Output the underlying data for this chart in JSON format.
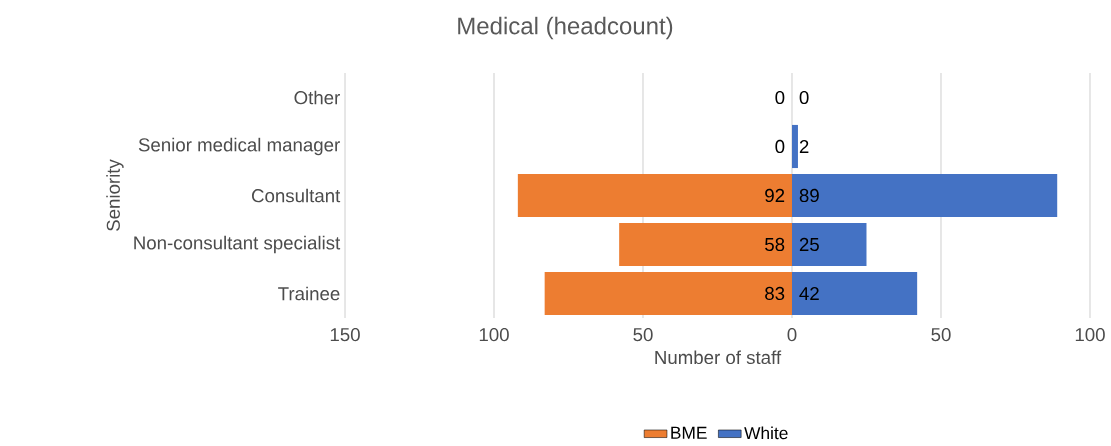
{
  "chart_data": {
    "type": "bar",
    "orientation": "horizontal",
    "title": "Medical (headcount)",
    "xlabel": "Number of staff",
    "ylabel": "Seniority",
    "categories": [
      "Other",
      "Senior medical manager",
      "Consultant",
      "Non-consultant specialist",
      "Trainee"
    ],
    "series": [
      {
        "name": "BME",
        "color": "#ed7d31",
        "values": [
          0,
          0,
          92,
          58,
          83
        ],
        "base": [
          null,
          null,
          -92,
          -58,
          -83
        ],
        "value_labels": [
          "0",
          "0",
          "92",
          "58",
          "83"
        ]
      },
      {
        "name": "White",
        "color": "#4472c4",
        "values": [
          0,
          2,
          89,
          25,
          42
        ],
        "value_labels": [
          "0",
          "2",
          "89",
          "25",
          "42"
        ]
      }
    ],
    "xlim": [
      -150,
      100
    ],
    "xticks": [
      {
        "value": -150,
        "label": "150"
      },
      {
        "value": -100,
        "label": "100"
      },
      {
        "value": -50,
        "label": "50"
      },
      0,
      50,
      100
    ],
    "grid": "x",
    "legend": "bottom"
  }
}
